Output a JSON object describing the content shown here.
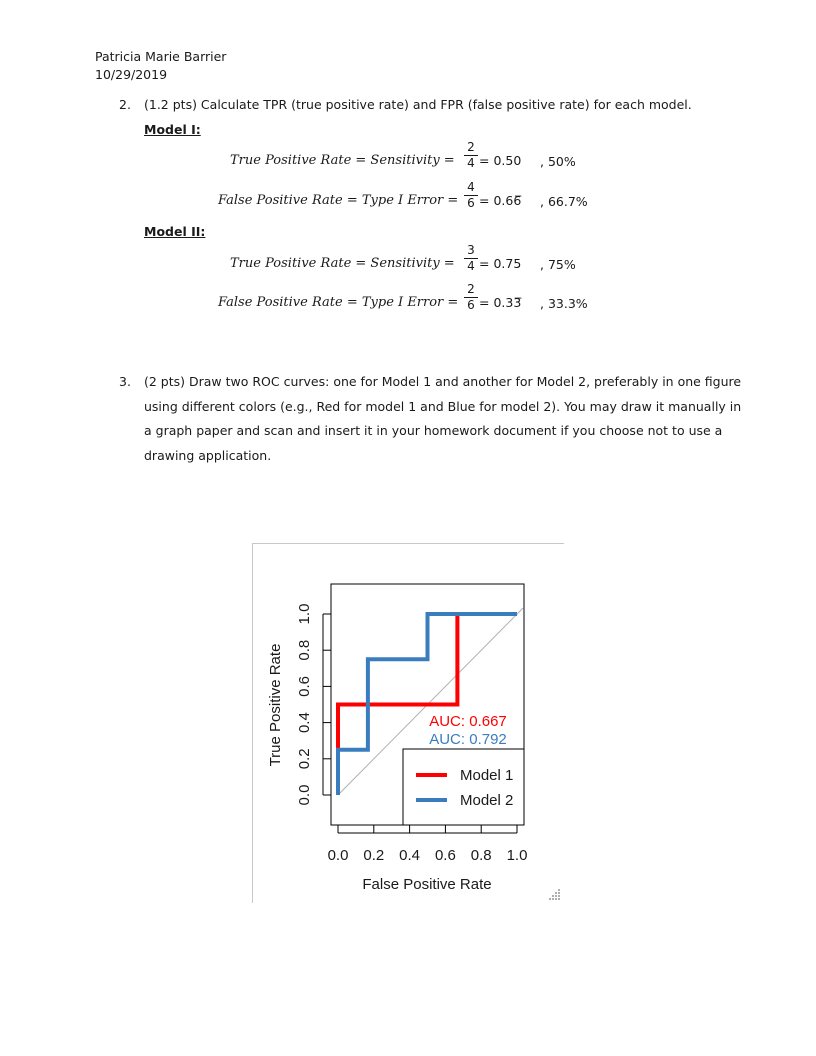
{
  "header": {
    "name": "Patricia Marie Barrier",
    "date": "10/29/2019"
  },
  "q2": {
    "number": "2.",
    "text": "(1.2 pts) Calculate TPR (true positive rate) and FPR (false positive rate) for each model.",
    "model1": {
      "heading": "Model I:",
      "tpr_lhs": "True Positive Rate = Sensitivity =",
      "tpr_num": "2",
      "tpr_den": "4",
      "tpr_result": "= 0.50",
      "tpr_pct": ",  50%",
      "fpr_lhs": "False Positive Rate = Type I Error =",
      "fpr_num": "4",
      "fpr_den": "6",
      "fpr_result": "= 0.66̅",
      "fpr_pct": ",  66.7%"
    },
    "model2": {
      "heading": "Model II:",
      "tpr_lhs": "True Positive Rate = Sensitivity =",
      "tpr_num": "3",
      "tpr_den": "4",
      "tpr_result": "= 0.75",
      "tpr_pct": ",  75%",
      "fpr_lhs": "False Positive Rate = Type I Error =",
      "fpr_num": "2",
      "fpr_den": "6",
      "fpr_result": "= 0.33̅",
      "fpr_pct": ",  33.3%"
    }
  },
  "q3": {
    "number": "3.",
    "line1": "(2 pts) Draw two ROC curves: one for Model 1 and another for Model 2, preferably in one figure",
    "line2": "using different colors (e.g., Red for model 1 and Blue for model 2).  You may draw it manually in",
    "line3": "a graph paper and scan and insert it in your homework document if you choose not to use a",
    "line4": "drawing application."
  },
  "chart_data": {
    "type": "line",
    "xlabel": "False Positive Rate",
    "ylabel": "True Positive Rate",
    "xlim": [
      0,
      1
    ],
    "ylim": [
      0,
      1
    ],
    "xticks": [
      "0.0",
      "0.2",
      "0.4",
      "0.6",
      "0.8",
      "1.0"
    ],
    "yticks": [
      "0.0",
      "0.2",
      "0.4",
      "0.6",
      "0.8",
      "1.0"
    ],
    "grid": false,
    "legend_position": "bottom-right",
    "series": [
      {
        "name": "Model 1",
        "color": "#ff0000",
        "x": [
          0,
          0,
          0.667,
          0.667
        ],
        "y": [
          0,
          0.5,
          0.5,
          1.0
        ],
        "auc_label": "AUC: 0.667"
      },
      {
        "name": "Model 2",
        "color": "#3a7dbf",
        "x": [
          0,
          0,
          0.167,
          0.167,
          0.5,
          0.5,
          1.0
        ],
        "y": [
          0,
          0.25,
          0.25,
          0.75,
          0.75,
          1.0,
          1.0
        ],
        "auc_label": "AUC: 0.792"
      }
    ],
    "reference_line": {
      "x": [
        0,
        1
      ],
      "y": [
        0,
        1
      ],
      "color": "#b0b0b0"
    }
  }
}
